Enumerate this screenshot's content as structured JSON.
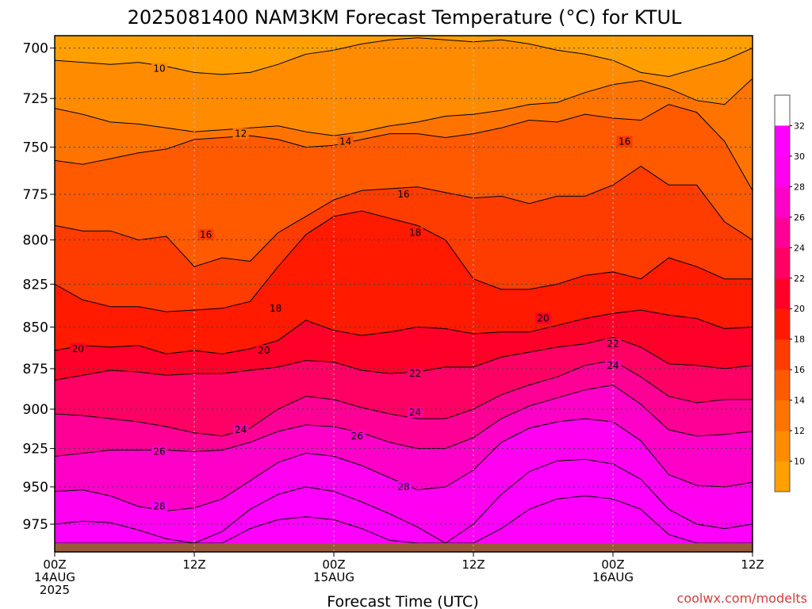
{
  "title": "2025081400 NAM3KM Forecast Temperature (°C) for KTUL",
  "credit": "coolwx.com/modelts",
  "colors": {
    "credit": "#d43c3c",
    "ground": "#9a5a3a",
    "scale": [
      "#ffa000",
      "#ff8c00",
      "#ff7400",
      "#ff5a00",
      "#ff3c00",
      "#ff1a00",
      "#ff0028",
      "#ff0064",
      "#ff0096",
      "#ff00c8",
      "#ff00f0",
      "#ff00ff"
    ]
  },
  "chart_data": {
    "type": "heatmap",
    "xlabel": "Forecast Time (UTC)",
    "ylabel": "",
    "x_ticks": [
      {
        "hour": 0,
        "lines": [
          "00Z",
          "14AUG",
          "2025"
        ]
      },
      {
        "hour": 12,
        "lines": [
          "12Z"
        ]
      },
      {
        "hour": 24,
        "lines": [
          "00Z",
          "15AUG"
        ]
      },
      {
        "hour": 36,
        "lines": [
          "12Z"
        ]
      },
      {
        "hour": 48,
        "lines": [
          "00Z",
          "16AUG"
        ]
      },
      {
        "hour": 60,
        "lines": [
          "12Z"
        ]
      }
    ],
    "xlim": [
      0,
      60
    ],
    "y_ticks": [
      700,
      725,
      750,
      775,
      800,
      825,
      850,
      875,
      900,
      925,
      950,
      975
    ],
    "ylim": [
      694,
      994
    ],
    "y_scale": "log-pressure",
    "grid": true,
    "colorbar": {
      "placement": "right",
      "labels": [
        10,
        12,
        14,
        16,
        18,
        20,
        22,
        24,
        26,
        28,
        30,
        32
      ],
      "range": [
        8,
        34
      ]
    },
    "surface_pressure": 988,
    "contour_interval": 2,
    "isotherms": [
      {
        "value": 10,
        "pressures": [
          706,
          707,
          708,
          707,
          709,
          712,
          713,
          712,
          708,
          703,
          701,
          698,
          696,
          695,
          696,
          697,
          696,
          698,
          701,
          703,
          706,
          712,
          714,
          710,
          706,
          700
        ]
      },
      {
        "value": 12,
        "pressures": [
          730,
          733,
          737,
          738,
          740,
          742,
          741,
          740,
          739,
          742,
          744,
          742,
          739,
          737,
          734,
          733,
          731,
          728,
          727,
          722,
          718,
          716,
          720,
          726,
          728,
          715
        ]
      },
      {
        "value": 14,
        "pressures": [
          757,
          759,
          756,
          753,
          751,
          746,
          745,
          744,
          746,
          750,
          749,
          746,
          743,
          743,
          745,
          743,
          740,
          736,
          737,
          733,
          735,
          736,
          728,
          732,
          747,
          773
        ]
      },
      {
        "value": 16,
        "pressures": [
          792,
          795,
          795,
          800,
          798,
          815,
          810,
          812,
          796,
          787,
          778,
          773,
          772,
          771,
          774,
          777,
          776,
          780,
          776,
          776,
          770,
          760,
          770,
          770,
          790,
          800
        ]
      },
      {
        "value": 18,
        "pressures": [
          825,
          834,
          838,
          838,
          841,
          840,
          839,
          835,
          815,
          797,
          787,
          784,
          788,
          792,
          800,
          822,
          828,
          828,
          825,
          820,
          818,
          822,
          810,
          815,
          822,
          822
        ]
      },
      {
        "value": 20,
        "pressures": [
          864,
          861,
          862,
          861,
          866,
          864,
          866,
          863,
          858,
          846,
          852,
          855,
          853,
          850,
          851,
          854,
          853,
          853,
          849,
          845,
          842,
          840,
          843,
          845,
          851,
          850
        ]
      },
      {
        "value": 22,
        "pressures": [
          882,
          879,
          876,
          877,
          879,
          878,
          878,
          876,
          874,
          870,
          871,
          876,
          878,
          877,
          874,
          874,
          868,
          865,
          862,
          860,
          856,
          862,
          872,
          873,
          875,
          873
        ]
      },
      {
        "value": 24,
        "pressures": [
          903,
          904,
          906,
          908,
          911,
          915,
          917,
          912,
          900,
          892,
          894,
          899,
          903,
          906,
          906,
          900,
          891,
          885,
          880,
          873,
          870,
          880,
          892,
          896,
          894,
          894
        ]
      },
      {
        "value": 26,
        "pressures": [
          930,
          928,
          926,
          926,
          926,
          927,
          926,
          921,
          914,
          910,
          911,
          915,
          921,
          925,
          925,
          918,
          906,
          898,
          893,
          888,
          885,
          897,
          913,
          917,
          916,
          914
        ]
      },
      {
        "value": 28,
        "pressures": [
          953,
          952,
          956,
          963,
          966,
          964,
          958,
          946,
          934,
          928,
          930,
          936,
          944,
          952,
          950,
          939,
          921,
          912,
          908,
          906,
          908,
          920,
          942,
          949,
          950,
          947
        ]
      },
      {
        "value": 30,
        "pressures": [
          975,
          973,
          974,
          979,
          985,
          988,
          980,
          965,
          955,
          950,
          953,
          960,
          968,
          977,
          988,
          975,
          955,
          940,
          933,
          932,
          935,
          945,
          965,
          975,
          978,
          975
        ]
      },
      {
        "value": 32,
        "pressures": [
          988,
          988,
          988,
          988,
          988,
          988,
          988,
          978,
          972,
          970,
          972,
          978,
          986,
          988,
          988,
          988,
          978,
          965,
          958,
          956,
          958,
          965,
          982,
          988,
          988,
          988
        ]
      }
    ],
    "contour_labels": [
      {
        "value": 10,
        "hour": 9.0,
        "pressure": 710
      },
      {
        "value": 12,
        "hour": 16.0,
        "pressure": 743
      },
      {
        "value": 14,
        "hour": 25.0,
        "pressure": 747
      },
      {
        "value": 16,
        "hour": 13.0,
        "pressure": 797
      },
      {
        "value": 16,
        "hour": 30.0,
        "pressure": 775
      },
      {
        "value": 16,
        "hour": 49.0,
        "pressure": 747
      },
      {
        "value": 18,
        "hour": 19.0,
        "pressure": 839
      },
      {
        "value": 18,
        "hour": 31.0,
        "pressure": 796
      },
      {
        "value": 20,
        "hour": 2.0,
        "pressure": 863
      },
      {
        "value": 20,
        "hour": 18.0,
        "pressure": 864
      },
      {
        "value": 20,
        "hour": 42.0,
        "pressure": 845
      },
      {
        "value": 22,
        "hour": 31.0,
        "pressure": 878
      },
      {
        "value": 22,
        "hour": 48.0,
        "pressure": 860
      },
      {
        "value": 24,
        "hour": 16.0,
        "pressure": 913
      },
      {
        "value": 24,
        "hour": 31.0,
        "pressure": 902
      },
      {
        "value": 24,
        "hour": 48.0,
        "pressure": 873
      },
      {
        "value": 26,
        "hour": 9.0,
        "pressure": 927
      },
      {
        "value": 26,
        "hour": 26.0,
        "pressure": 917
      },
      {
        "value": 28,
        "hour": 9.0,
        "pressure": 963
      },
      {
        "value": 28,
        "hour": 30.0,
        "pressure": 950
      }
    ]
  }
}
